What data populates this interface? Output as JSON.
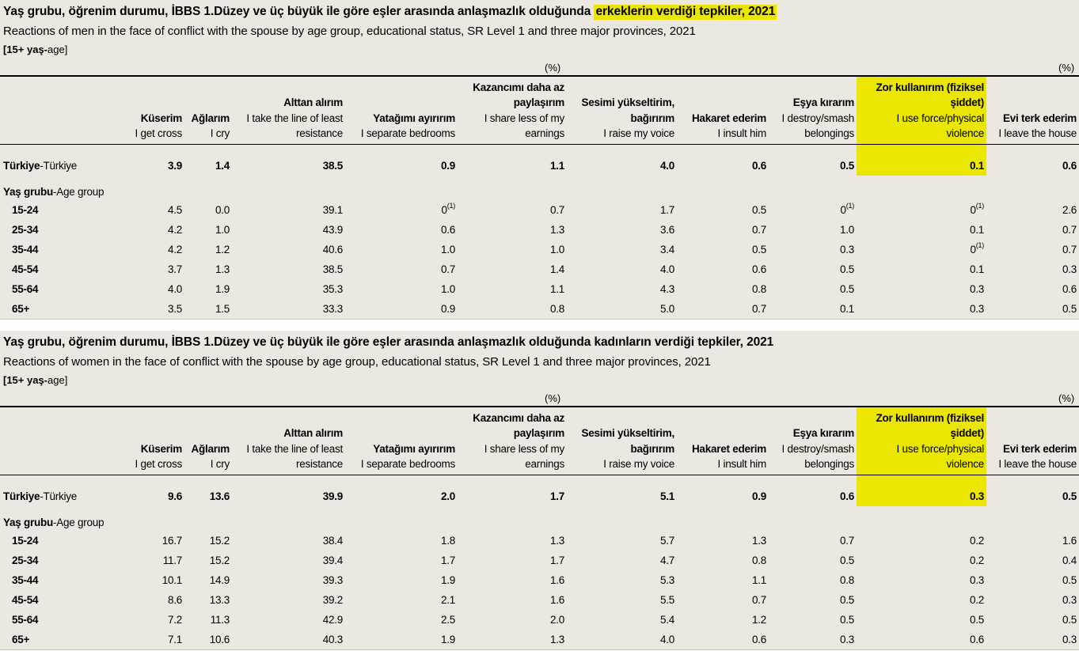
{
  "highlight_color": "#ebe600",
  "background_color": "#ebe7e1",
  "sections": [
    {
      "title_main": "Yaş grubu, öğrenim durumu, İBBS 1.Düzey ve üç büyük ile göre eşler arasında anlaşmazlık olduğunda ",
      "title_highlight": "erkeklerin verdiği tepkiler, 2021",
      "subtitle": "Reactions of men in the face of conflict with the spouse by age group, educational status, SR Level 1 and three major provinces, 2021",
      "unit_bold": "[15+ yaş-",
      "unit_normal": "age]",
      "pct_label_1": "(%)",
      "pct_label_2": "(%)",
      "columns": [
        {
          "tr": "Küserim",
          "en": "I get cross"
        },
        {
          "tr": "Ağlarım",
          "en": "I cry"
        },
        {
          "tr": "Alttan alırım",
          "en": "I take the line of least\nresistance"
        },
        {
          "tr": "Yatağımı ayırırım",
          "en": "I separate bedrooms"
        },
        {
          "tr": "Kazancımı daha az\npaylaşırım",
          "en": "I share less of my\nearnings"
        },
        {
          "tr": "Sesimi yükseltirim,\nbağırırım",
          "en": "I raise my voice"
        },
        {
          "tr": "Hakaret ederim",
          "en": "I insult him"
        },
        {
          "tr": "Eşya kırarım",
          "en": "I destroy/smash\nbelongings"
        },
        {
          "tr": "Zor kullanırım (fiziksel\nşiddet)",
          "en": "I use force/physical\nviolence",
          "highlighted": true
        },
        {
          "tr": "Evi terk ederim",
          "en": "I leave the house"
        }
      ],
      "total": {
        "label_bold": "Türkiye",
        "label_normal": "-Türkiye",
        "values": [
          "3.9",
          "1.4",
          "38.5",
          "0.9",
          "1.1",
          "4.0",
          "0.6",
          "0.5",
          "0.1",
          "0.6"
        ]
      },
      "group": {
        "label_bold": "Yaş grubu",
        "label_normal": "-Age group"
      },
      "rows": [
        {
          "label": "15-24",
          "values": [
            "4.5",
            "0.0",
            "39.1",
            {
              "v": "0",
              "note": "(1)"
            },
            "0.7",
            "1.7",
            "0.5",
            {
              "v": "0",
              "note": "(1)"
            },
            {
              "v": "0",
              "note": "(1)"
            },
            "2.6"
          ]
        },
        {
          "label": "25-34",
          "values": [
            "4.2",
            "1.0",
            "43.9",
            "0.6",
            "1.3",
            "3.6",
            "0.7",
            "1.0",
            "0.1",
            "0.7"
          ]
        },
        {
          "label": "35-44",
          "values": [
            "4.2",
            "1.2",
            "40.6",
            "1.0",
            "1.0",
            "3.4",
            "0.5",
            "0.3",
            {
              "v": "0",
              "note": "(1)"
            },
            "0.7"
          ]
        },
        {
          "label": "45-54",
          "values": [
            "3.7",
            "1.3",
            "38.5",
            "0.7",
            "1.4",
            "4.0",
            "0.6",
            "0.5",
            "0.1",
            "0.3"
          ]
        },
        {
          "label": "55-64",
          "values": [
            "4.0",
            "1.9",
            "35.3",
            "1.0",
            "1.1",
            "4.3",
            "0.8",
            "0.5",
            "0.3",
            "0.6"
          ]
        },
        {
          "label": "65+",
          "values": [
            "3.5",
            "1.5",
            "33.3",
            "0.9",
            "0.8",
            "5.0",
            "0.7",
            "0.1",
            "0.3",
            "0.5"
          ]
        }
      ]
    },
    {
      "title_main": "Yaş grubu, öğrenim durumu, İBBS 1.Düzey ve üç büyük ile göre eşler arasında anlaşmazlık olduğunda kadınların verdiği tepkiler, 2021",
      "title_highlight": "",
      "subtitle": "Reactions of women in the face of conflict with the spouse by age group, educational status, SR Level 1 and three major provinces, 2021",
      "unit_bold": "[15+ yaş-",
      "unit_normal": "age]",
      "pct_label_1": "(%)",
      "pct_label_2": "(%)",
      "columns": [
        {
          "tr": "Küserim",
          "en": "I get cross"
        },
        {
          "tr": "Ağlarım",
          "en": "I cry"
        },
        {
          "tr": "Alttan alırım",
          "en": "I take the line of least\nresistance"
        },
        {
          "tr": "Yatağımı ayırırım",
          "en": "I separate bedrooms"
        },
        {
          "tr": "Kazancımı daha az\npaylaşırım",
          "en": "I share less of my\nearnings"
        },
        {
          "tr": "Sesimi yükseltirim,\nbağırırım",
          "en": "I raise my voice"
        },
        {
          "tr": "Hakaret ederim",
          "en": "I insult him"
        },
        {
          "tr": "Eşya kırarım",
          "en": "I destroy/smash\nbelongings"
        },
        {
          "tr": "Zor kullanırım (fiziksel\nşiddet)",
          "en": "I use force/physical\nviolence",
          "highlighted": true
        },
        {
          "tr": "Evi terk ederim",
          "en": "I leave the house"
        }
      ],
      "total": {
        "label_bold": "Türkiye",
        "label_normal": "-Türkiye",
        "values": [
          "9.6",
          "13.6",
          "39.9",
          "2.0",
          "1.7",
          "5.1",
          "0.9",
          "0.6",
          "0.3",
          "0.5"
        ]
      },
      "group": {
        "label_bold": "Yaş grubu",
        "label_normal": "-Age group"
      },
      "rows": [
        {
          "label": "15-24",
          "values": [
            "16.7",
            "15.2",
            "38.4",
            "1.8",
            "1.3",
            "5.7",
            "1.3",
            "0.7",
            "0.2",
            "1.6"
          ]
        },
        {
          "label": "25-34",
          "values": [
            "11.7",
            "15.2",
            "39.4",
            "1.7",
            "1.7",
            "4.7",
            "0.8",
            "0.5",
            "0.2",
            "0.4"
          ]
        },
        {
          "label": "35-44",
          "values": [
            "10.1",
            "14.9",
            "39.3",
            "1.9",
            "1.6",
            "5.3",
            "1.1",
            "0.8",
            "0.3",
            "0.5"
          ]
        },
        {
          "label": "45-54",
          "values": [
            "8.6",
            "13.3",
            "39.2",
            "2.1",
            "1.6",
            "5.5",
            "0.7",
            "0.5",
            "0.2",
            "0.3"
          ]
        },
        {
          "label": "55-64",
          "values": [
            "7.2",
            "11.3",
            "42.9",
            "2.5",
            "2.0",
            "5.4",
            "1.2",
            "0.5",
            "0.5",
            "0.5"
          ]
        },
        {
          "label": "65+",
          "values": [
            "7.1",
            "10.6",
            "40.3",
            "1.9",
            "1.3",
            "4.0",
            "0.6",
            "0.3",
            "0.6",
            "0.3"
          ]
        }
      ]
    }
  ]
}
